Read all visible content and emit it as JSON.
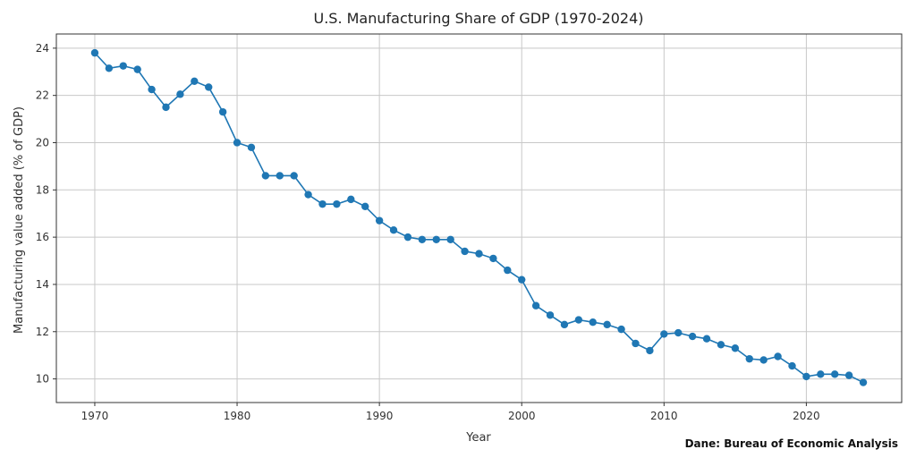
{
  "chart_data": {
    "type": "line",
    "title": "U.S. Manufacturing Share of GDP (1970-2024)",
    "xlabel": "Year",
    "ylabel": "Manufacturing value added (% of GDP)",
    "xlim": [
      1967.3,
      1926.7
    ],
    "ylim": [
      9.0,
      24.6
    ],
    "x_ticks": [
      1970,
      1980,
      1990,
      2000,
      2010,
      2020
    ],
    "y_ticks": [
      10,
      12,
      14,
      16,
      18,
      20,
      22,
      24
    ],
    "grid": true,
    "color": "#1f77b4",
    "series": [
      {
        "x": [
          1970,
          1971,
          1972,
          1973,
          1974,
          1975,
          1976,
          1977,
          1978,
          1979,
          1980,
          1981,
          1982,
          1983,
          1984,
          1985,
          1986,
          1987,
          1988,
          1989,
          1990,
          1991,
          1992,
          1993,
          1994,
          1995,
          1996,
          1997,
          1998,
          1999,
          2000,
          2001,
          2002,
          2003,
          2004,
          2005,
          2006,
          2007,
          2008,
          2009,
          2010,
          2011,
          2012,
          2013,
          2014,
          2015,
          2016,
          2017,
          2018,
          2019,
          2020,
          2021,
          2022,
          2023,
          2024
        ],
        "y": [
          23.8,
          23.15,
          23.25,
          23.1,
          22.25,
          21.5,
          22.05,
          22.6,
          22.35,
          21.3,
          20.0,
          19.8,
          18.6,
          18.6,
          18.6,
          17.8,
          17.4,
          17.4,
          17.6,
          17.3,
          16.7,
          16.3,
          16.0,
          15.9,
          15.9,
          15.9,
          15.4,
          15.3,
          15.1,
          14.6,
          14.2,
          13.1,
          12.7,
          12.3,
          12.5,
          12.4,
          12.3,
          12.1,
          11.5,
          11.2,
          11.9,
          11.95,
          11.8,
          11.7,
          11.45,
          11.3,
          10.85,
          10.8,
          10.95,
          10.55,
          10.1,
          10.2,
          10.2,
          10.15,
          9.85
        ]
      }
    ],
    "source": "Dane: Bureau of Economic Analysis"
  }
}
